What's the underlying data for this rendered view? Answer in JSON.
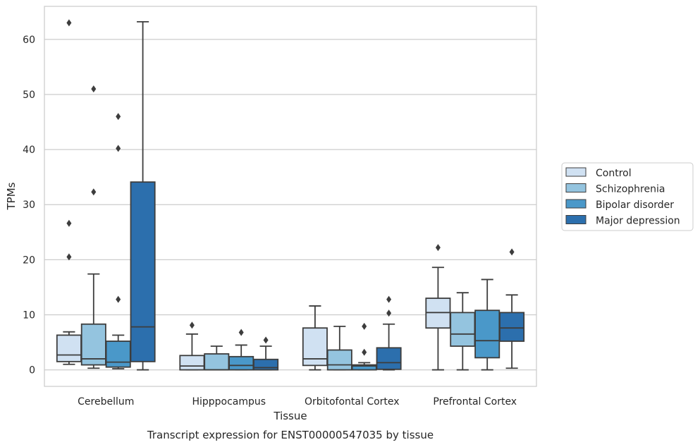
{
  "caption": "Transcript expression for ENST00000547035 by tissue",
  "chart_data": {
    "type": "box",
    "title": "",
    "xlabel": "Tissue",
    "ylabel": "TPMs",
    "ylim": [
      -3,
      66
    ],
    "yticks": [
      0,
      10,
      20,
      30,
      40,
      50,
      60
    ],
    "grid": "horizontal",
    "legend_position": "right",
    "categories": [
      "Cerebellum",
      "Hipppocampus",
      "Orbitofontal Cortex",
      "Prefrontal Cortex"
    ],
    "series": [
      {
        "name": "Control",
        "color": "#d0e1f2",
        "boxes": [
          {
            "whisker_low": 1.0,
            "q1": 1.5,
            "median": 2.7,
            "q3": 6.3,
            "whisker_high": 6.9,
            "outliers": [
              63.0,
              26.6,
              20.5
            ]
          },
          {
            "whisker_low": 0.0,
            "q1": 0.0,
            "median": 0.7,
            "q3": 2.6,
            "whisker_high": 6.5,
            "outliers": [
              8.1
            ]
          },
          {
            "whisker_low": 0.0,
            "q1": 0.8,
            "median": 2.0,
            "q3": 7.6,
            "whisker_high": 11.6,
            "outliers": []
          },
          {
            "whisker_low": 0.0,
            "q1": 7.6,
            "median": 10.4,
            "q3": 13.0,
            "whisker_high": 18.6,
            "outliers": [
              22.2
            ]
          }
        ]
      },
      {
        "name": "Schizophrenia",
        "color": "#94c4df",
        "boxes": [
          {
            "whisker_low": 0.3,
            "q1": 0.9,
            "median": 2.0,
            "q3": 8.3,
            "whisker_high": 17.4,
            "outliers": [
              51.0,
              32.3
            ]
          },
          {
            "whisker_low": 0.0,
            "q1": 0.0,
            "median": 0.0,
            "q3": 2.9,
            "whisker_high": 4.3,
            "outliers": []
          },
          {
            "whisker_low": 0.0,
            "q1": 0.0,
            "median": 0.9,
            "q3": 3.6,
            "whisker_high": 7.9,
            "outliers": []
          },
          {
            "whisker_low": 0.0,
            "q1": 4.3,
            "median": 6.5,
            "q3": 10.4,
            "whisker_high": 14.0,
            "outliers": []
          }
        ]
      },
      {
        "name": "Bipolar disorder",
        "color": "#4a98c9",
        "boxes": [
          {
            "whisker_low": 0.2,
            "q1": 0.5,
            "median": 1.4,
            "q3": 5.2,
            "whisker_high": 6.3,
            "outliers": [
              46.0,
              40.2,
              12.8
            ]
          },
          {
            "whisker_low": 0.0,
            "q1": 0.0,
            "median": 0.8,
            "q3": 2.4,
            "whisker_high": 4.5,
            "outliers": [
              6.8
            ]
          },
          {
            "whisker_low": 0.0,
            "q1": 0.0,
            "median": 0.7,
            "q3": 0.9,
            "whisker_high": 1.3,
            "outliers": [
              7.9,
              3.2
            ]
          },
          {
            "whisker_low": 0.0,
            "q1": 2.2,
            "median": 5.3,
            "q3": 10.8,
            "whisker_high": 16.4,
            "outliers": []
          }
        ]
      },
      {
        "name": "Major depression",
        "color": "#2c6fad",
        "boxes": [
          {
            "whisker_low": 0.0,
            "q1": 1.5,
            "median": 7.8,
            "q3": 34.1,
            "whisker_high": 63.2,
            "outliers": []
          },
          {
            "whisker_low": 0.0,
            "q1": 0.0,
            "median": 0.4,
            "q3": 1.9,
            "whisker_high": 4.3,
            "outliers": [
              5.4
            ]
          },
          {
            "whisker_low": 0.0,
            "q1": 0.1,
            "median": 1.3,
            "q3": 4.0,
            "whisker_high": 8.3,
            "outliers": [
              12.8,
              10.3
            ]
          },
          {
            "whisker_low": 0.3,
            "q1": 5.2,
            "median": 7.6,
            "q3": 10.4,
            "whisker_high": 13.6,
            "outliers": [
              21.4
            ]
          }
        ]
      }
    ]
  }
}
